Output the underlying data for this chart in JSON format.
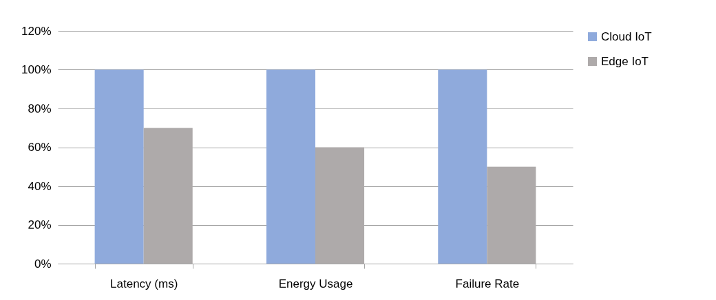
{
  "chart_data": {
    "type": "bar",
    "categories": [
      "Latency (ms)",
      "Energy Usage",
      "Failure Rate"
    ],
    "series": [
      {
        "name": "Cloud IoT",
        "color": "#8faadc",
        "values": [
          100,
          100,
          100
        ]
      },
      {
        "name": "Edge IoT",
        "color": "#aeaaaa",
        "values": [
          70,
          60,
          50
        ]
      }
    ],
    "ylim": [
      0,
      120
    ],
    "yticks": [
      {
        "value": 0,
        "label": "0%"
      },
      {
        "value": 20,
        "label": "20%"
      },
      {
        "value": 40,
        "label": "40%"
      },
      {
        "value": 60,
        "label": "60%"
      },
      {
        "value": 80,
        "label": "80%"
      },
      {
        "value": 100,
        "label": "100%"
      },
      {
        "value": 120,
        "label": "120%"
      }
    ],
    "grid": "y",
    "legend": "right"
  }
}
